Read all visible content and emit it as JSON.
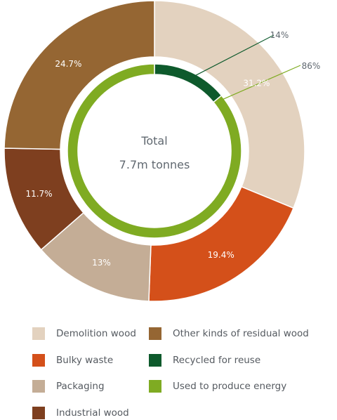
{
  "chart_data": {
    "type": "pie",
    "center_label": {
      "line1": "Total",
      "line2": "7.7m tonnes"
    },
    "outer_ring": {
      "segments": [
        {
          "name": "Demolition wood",
          "value": 31.2,
          "label": "31.2%",
          "color": "#e3d2bf"
        },
        {
          "name": "Bulky waste",
          "value": 19.4,
          "label": "19.4%",
          "color": "#d4501a"
        },
        {
          "name": "Packaging",
          "value": 13,
          "label": "13%",
          "color": "#c4ad96"
        },
        {
          "name": "Industrial wood",
          "value": 11.7,
          "label": "11.7%",
          "color": "#7e3f1f"
        },
        {
          "name": "Other kinds of residual wood",
          "value": 24.7,
          "label": "24.7%",
          "color": "#956633"
        }
      ]
    },
    "inner_ring": {
      "segments": [
        {
          "name": "Recycled for reuse",
          "value": 14,
          "label": "14%",
          "color": "#0e5a2c"
        },
        {
          "name": "Used to produce energy",
          "value": 86,
          "label": "86%",
          "color": "#7fab22"
        }
      ]
    },
    "legend": [
      {
        "label": "Demolition wood",
        "color": "#e3d2bf"
      },
      {
        "label": "Other kinds of residual wood",
        "color": "#956633"
      },
      {
        "label": "Bulky waste",
        "color": "#d4501a"
      },
      {
        "label": "Recycled for reuse",
        "color": "#0e5a2c"
      },
      {
        "label": "Packaging",
        "color": "#c4ad96"
      },
      {
        "label": "Used to produce energy",
        "color": "#7fab22"
      },
      {
        "label": "Industrial wood",
        "color": "#7e3f1f"
      }
    ]
  }
}
